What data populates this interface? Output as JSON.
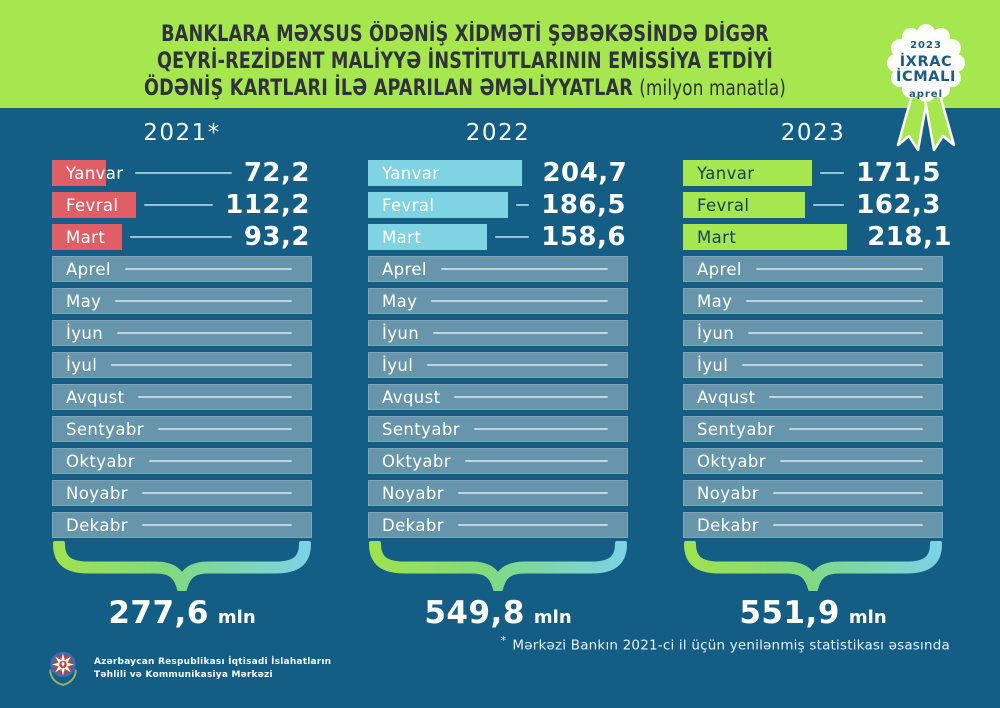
{
  "header": {
    "line1": "BANKLARA MƏXSUS ÖDƏNİŞ XİDMƏTİ ŞƏBƏKƏSİNDƏ DİGƏR",
    "line2": "QEYRİ-REZİDENT MALİYYƏ İNSTİTUTLARININ EMİSSİYA ETDİYİ",
    "line3": "ÖDƏNİŞ KARTLARI İLƏ APARILAN ƏMƏLİYYATLAR",
    "suffix": "(milyon manatla)"
  },
  "badge": {
    "year": "2023",
    "line1": "İXRAC",
    "line2": "İCMALI",
    "month": "aprel"
  },
  "chart_data": {
    "type": "bar",
    "bar_direction": "horizontal",
    "legend_position": "none",
    "value_labels": "right",
    "unit": "milyon manat",
    "title": "Banklara məxsus ödəniş xidməti şəbəkəsində digər qeyri-rezident maliyyə institutlarının emissiya etdiyi ödəniş kartları ilə aparılan əməliyyatlar (milyon manatla)",
    "categories": [
      "Yanvar",
      "Fevral",
      "Mart",
      "Aprel",
      "May",
      "İyun",
      "İyul",
      "Avqust",
      "Sentyabr",
      "Oktyabr",
      "Noyabr",
      "Dekabr"
    ],
    "total_suffix": "mln",
    "series": [
      {
        "name": "2021*",
        "color": "#e05f67",
        "label_dark": false,
        "values": [
          72.2,
          112.2,
          93.2,
          null,
          null,
          null,
          null,
          null,
          null,
          null,
          null,
          null
        ],
        "display": [
          "72,2",
          "112,2",
          "93,2",
          null,
          null,
          null,
          null,
          null,
          null,
          null,
          null,
          null
        ],
        "total_value": 277.6,
        "total_display": "277,6"
      },
      {
        "name": "2022",
        "color": "#7fd3e2",
        "label_dark": false,
        "values": [
          204.7,
          186.5,
          158.6,
          null,
          null,
          null,
          null,
          null,
          null,
          null,
          null,
          null
        ],
        "display": [
          "204,7",
          "186,5",
          "158,6",
          null,
          null,
          null,
          null,
          null,
          null,
          null,
          null,
          null
        ],
        "total_value": 549.8,
        "total_display": "549,8"
      },
      {
        "name": "2023",
        "color": "#a6e64e",
        "label_dark": true,
        "values": [
          171.5,
          162.3,
          218.1,
          null,
          null,
          null,
          null,
          null,
          null,
          null,
          null,
          null
        ],
        "display": [
          "171,5",
          "162,3",
          "218,1",
          null,
          null,
          null,
          null,
          null,
          null,
          null,
          null,
          null
        ],
        "total_value": 551.9,
        "total_display": "551,9"
      }
    ]
  },
  "footnote": {
    "marker": "*",
    "text": "Mərkəzi Bankın 2021-ci il üçün yenilənmiş statistikası əsasında"
  },
  "footer": {
    "org_line1": "Azərbaycan Respublikası İqtisadi İslahatların",
    "org_line2": "Təhlili və Kommunikasiya Mərkəzi"
  },
  "colors": {
    "background": "#145e86",
    "header_background": "#a6e64e",
    "title_text": "#30323c",
    "empty_bar": "#6795ab",
    "badge_text": "#1d5a8c",
    "value_text": "#ffffff",
    "series_2021": "#e05f67",
    "series_2022": "#7fd3e2",
    "series_2023": "#a6e64e",
    "brace_gradient": [
      "#9fe24f",
      "#82d97e",
      "#7bd3e3"
    ]
  }
}
